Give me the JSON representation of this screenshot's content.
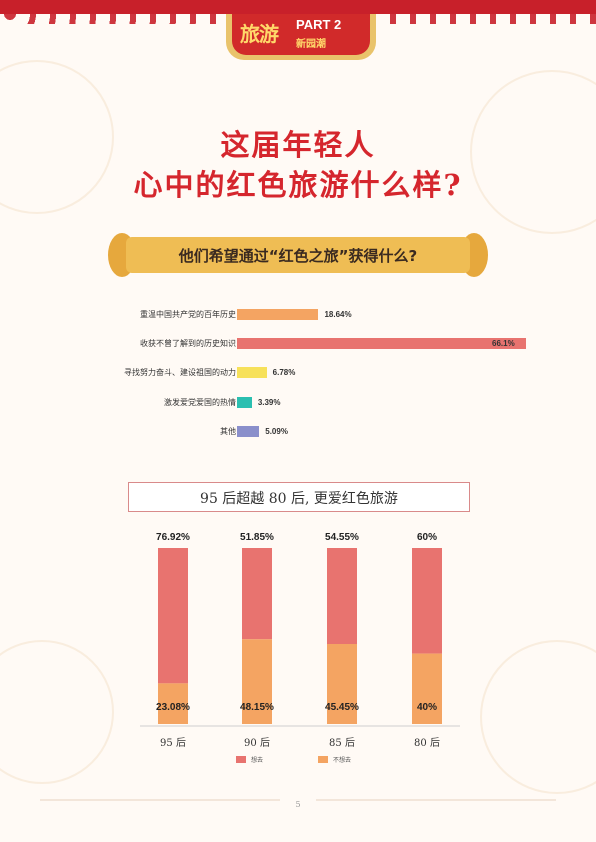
{
  "header": {
    "badge_left": "旅游",
    "badge_part": "PART 2",
    "badge_sub": "新园潮"
  },
  "title": {
    "line1": "这届年轻人",
    "line2": "心中的红色旅游什么样?"
  },
  "section1_title": "他们希望通过“红色之旅”获得什么?",
  "section2_title": "95 后超越 80 后, 更爱红色旅游",
  "page_number": "5",
  "colors": {
    "red": "#e8736f",
    "orange": "#f4a462",
    "yellow": "#f7e15a",
    "teal": "#2bbfb0",
    "purple": "#8a8fcb",
    "title_red": "#d5262d"
  },
  "chart_data": [
    {
      "type": "bar",
      "orientation": "horizontal",
      "categories": [
        "重温中国共产党的百年历史",
        "收获不曾了解到的历史知识",
        "寻找努力奋斗、建设祖国的动力",
        "激发爱党爱国的热情",
        "其他"
      ],
      "values": [
        18.64,
        66.1,
        6.78,
        3.39,
        5.09
      ],
      "value_labels": [
        "18.64%",
        "66.1%",
        "6.78%",
        "3.39%",
        "5.09%"
      ],
      "bar_colors": [
        "#f4a462",
        "#e8736f",
        "#f7e15a",
        "#2bbfb0",
        "#8a8fcb"
      ],
      "xlim": [
        0,
        70
      ]
    },
    {
      "type": "bar",
      "stacked": true,
      "categories": [
        "95 后",
        "90 后",
        "85 后",
        "80 后"
      ],
      "series": [
        {
          "name": "想去",
          "color": "#e8736f",
          "values": [
            76.92,
            51.85,
            54.55,
            60
          ],
          "labels": [
            "76.92%",
            "51.85%",
            "54.55%",
            "60%"
          ]
        },
        {
          "name": "不想去",
          "color": "#f4a462",
          "values": [
            23.08,
            48.15,
            45.45,
            40
          ],
          "labels": [
            "23.08%",
            "48.15%",
            "45.45%",
            "40%"
          ]
        }
      ],
      "ylim": [
        0,
        100
      ],
      "legend": "bottom"
    }
  ]
}
